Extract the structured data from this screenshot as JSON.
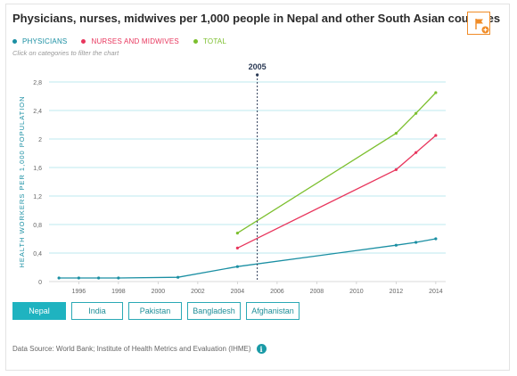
{
  "title": "Physicians, nurses, midwives per 1,000 people in Nepal and other South Asian countries",
  "hint": "Click on categories to filter the chart",
  "source": "Data Source: World Bank; Institute of Health Metrics and Evaluation (IHME)",
  "icons": {
    "flag": "flag-icon",
    "info": "info-icon"
  },
  "countries": [
    {
      "label": "Nepal",
      "active": true
    },
    {
      "label": "India",
      "active": false
    },
    {
      "label": "Pakistan",
      "active": false
    },
    {
      "label": "Bangladesh",
      "active": false
    },
    {
      "label": "Afghanistan",
      "active": false
    }
  ],
  "chart_data": {
    "type": "line",
    "title": "Physicians, nurses, midwives per 1,000 people in Nepal and other South Asian countries",
    "ylabel": "HEALTH WORKERS PER 1,000 POPULATION",
    "xlabel": "",
    "xlim": [
      1994.5,
      2014.5
    ],
    "ylim": [
      0,
      2.8
    ],
    "x_ticks": [
      1996,
      1998,
      2000,
      2002,
      2004,
      2006,
      2008,
      2010,
      2012,
      2014
    ],
    "y_ticks": [
      0,
      0.4,
      0.8,
      1.2,
      1.6,
      2,
      2.4,
      2.8
    ],
    "y_tick_labels": [
      "0",
      "0,4",
      "0,8",
      "1,2",
      "1,6",
      "2",
      "2,4",
      "2,8"
    ],
    "grid": true,
    "legend_position": "top-left",
    "marker": {
      "x": 2005,
      "label": "2005"
    },
    "series": [
      {
        "name": "PHYSICIANS",
        "color": "#1a8fa3",
        "x": [
          1995,
          1996,
          1997,
          1998,
          2001,
          2004,
          2012,
          2013,
          2014
        ],
        "y": [
          0.05,
          0.05,
          0.05,
          0.05,
          0.06,
          0.21,
          0.51,
          0.55,
          0.6
        ]
      },
      {
        "name": "NURSES AND MIDWIVES",
        "color": "#e8365d",
        "x": [
          2004,
          2012,
          2013,
          2014
        ],
        "y": [
          0.47,
          1.57,
          1.81,
          2.05
        ]
      },
      {
        "name": "TOTAL",
        "color": "#7cbf2e",
        "x": [
          2004,
          2012,
          2013,
          2014
        ],
        "y": [
          0.68,
          2.08,
          2.36,
          2.65
        ]
      }
    ]
  }
}
